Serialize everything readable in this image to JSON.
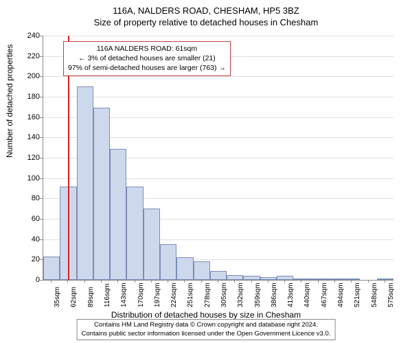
{
  "title_main": "116A, NALDERS ROAD, CHESHAM, HP5 3BZ",
  "title_sub": "Size of property relative to detached houses in Chesham",
  "y_axis_label": "Number of detached properties",
  "x_axis_label": "Distribution of detached houses by size in Chesham",
  "chart": {
    "type": "histogram",
    "ylim": [
      0,
      240
    ],
    "ytick_step": 20,
    "x_start": 35,
    "x_step": 27,
    "x_count": 21,
    "x_unit": "sqm",
    "background_color": "#ffffff",
    "grid_color": "#e0e0e0",
    "axis_color": "#888888",
    "bar_fill": "#ced8ec",
    "bar_border": "#7b8db5",
    "bar_values": [
      23,
      92,
      190,
      169,
      129,
      92,
      70,
      35,
      22,
      18,
      9,
      5,
      4,
      3,
      4,
      1,
      1,
      1,
      1,
      0,
      1
    ],
    "reference_line": {
      "value_sqm": 61,
      "color": "#d02020"
    }
  },
  "annotation": {
    "line1": "116A NALDERS ROAD: 61sqm",
    "line2": "← 3% of detached houses are smaller (21)",
    "line3": "97% of semi-detached houses are larger (763) →",
    "border_color": "#c04040"
  },
  "footer": {
    "line1": "Contains HM Land Registry data © Crown copyright and database right 2024.",
    "line2": "Contains public sector information licensed under the Open Government Licence v3.0."
  }
}
